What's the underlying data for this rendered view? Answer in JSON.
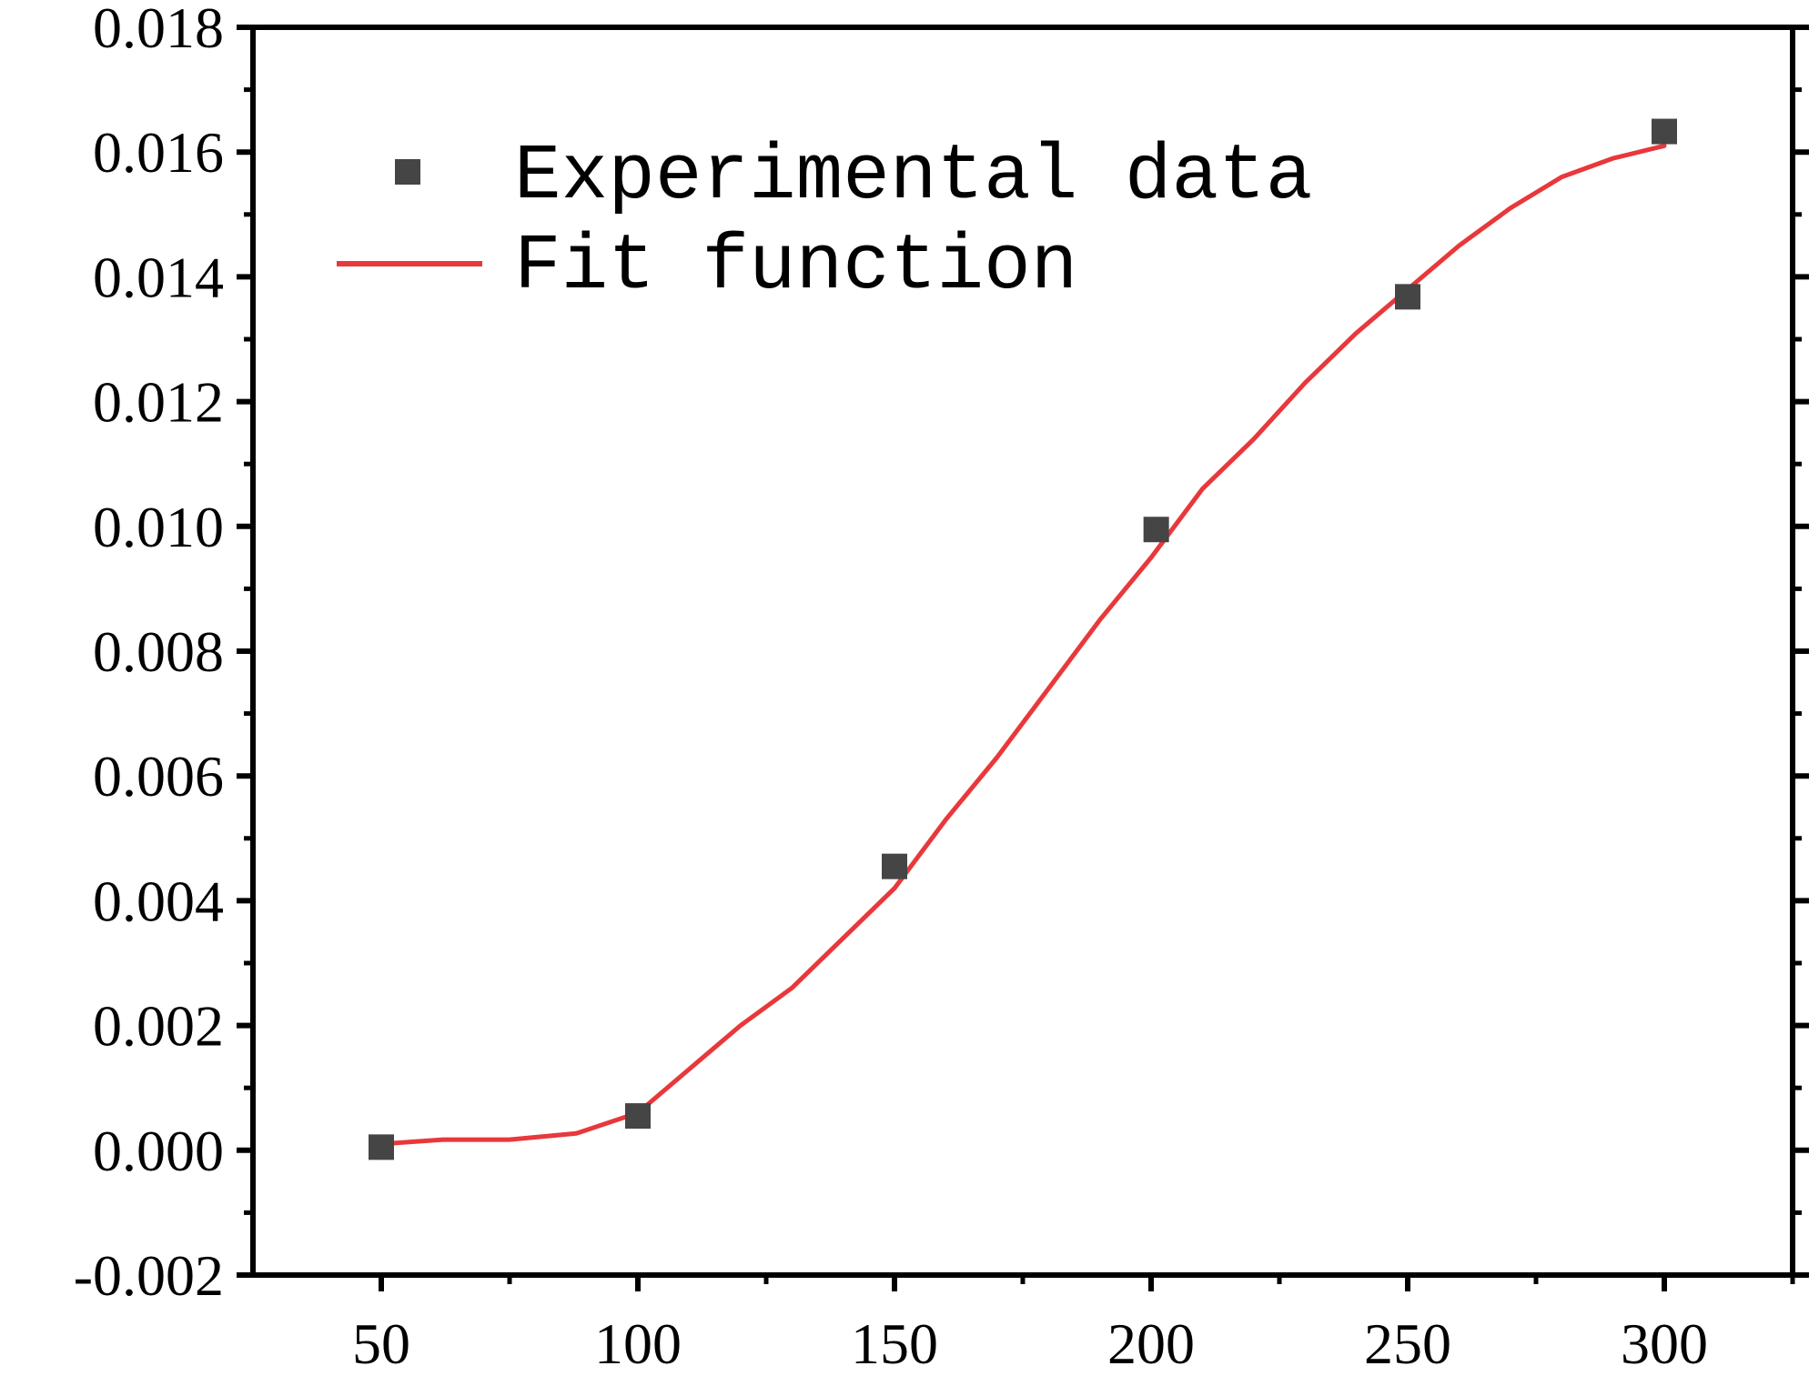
{
  "chart_data": {
    "type": "scatter",
    "title": "",
    "xlabel": "",
    "ylabel": "",
    "xlim": [
      25,
      325
    ],
    "ylim": [
      -0.002,
      0.018
    ],
    "x_ticks": [
      {
        "value": 50,
        "label": "50"
      },
      {
        "value": 100,
        "label": "100"
      },
      {
        "value": 150,
        "label": "150"
      },
      {
        "value": 200,
        "label": "200"
      },
      {
        "value": 250,
        "label": "250"
      },
      {
        "value": 300,
        "label": "300"
      }
    ],
    "y_ticks": [
      {
        "value": -0.002,
        "label": "-0.002"
      },
      {
        "value": 0.0,
        "label": "0.000"
      },
      {
        "value": 0.002,
        "label": "0.002"
      },
      {
        "value": 0.004,
        "label": "0.004"
      },
      {
        "value": 0.006,
        "label": "0.006"
      },
      {
        "value": 0.008,
        "label": "0.008"
      },
      {
        "value": 0.01,
        "label": "0.010"
      },
      {
        "value": 0.012,
        "label": "0.012"
      },
      {
        "value": 0.014,
        "label": "0.014"
      },
      {
        "value": 0.016,
        "label": "0.016"
      },
      {
        "value": 0.018,
        "label": "0.018"
      }
    ],
    "grid": false,
    "legend_position": "top-left",
    "series": [
      {
        "name": "Experimental data",
        "kind": "scatter",
        "marker": "square",
        "color": "#454545",
        "points": [
          {
            "x": 50,
            "y": 5e-05
          },
          {
            "x": 100,
            "y": 0.00055
          },
          {
            "x": 150,
            "y": 0.00455
          },
          {
            "x": 201,
            "y": 0.00995
          },
          {
            "x": 250,
            "y": 0.01368
          },
          {
            "x": 300,
            "y": 0.01633
          }
        ]
      },
      {
        "name": "Fit function",
        "kind": "line",
        "color": "#e8383b",
        "points": [
          {
            "x": 50,
            "y": 0.0001
          },
          {
            "x": 62,
            "y": 0.00017
          },
          {
            "x": 75,
            "y": 0.00017
          },
          {
            "x": 88,
            "y": 0.00027
          },
          {
            "x": 100,
            "y": 0.0006
          },
          {
            "x": 110,
            "y": 0.0013
          },
          {
            "x": 120,
            "y": 0.002
          },
          {
            "x": 130,
            "y": 0.0026
          },
          {
            "x": 140,
            "y": 0.0034
          },
          {
            "x": 150,
            "y": 0.0042
          },
          {
            "x": 160,
            "y": 0.0053
          },
          {
            "x": 170,
            "y": 0.0063
          },
          {
            "x": 180,
            "y": 0.0074
          },
          {
            "x": 190,
            "y": 0.0085
          },
          {
            "x": 200,
            "y": 0.0095
          },
          {
            "x": 210,
            "y": 0.0106
          },
          {
            "x": 220,
            "y": 0.0114
          },
          {
            "x": 230,
            "y": 0.0123
          },
          {
            "x": 240,
            "y": 0.0131
          },
          {
            "x": 250,
            "y": 0.0138
          },
          {
            "x": 260,
            "y": 0.0145
          },
          {
            "x": 270,
            "y": 0.0151
          },
          {
            "x": 280,
            "y": 0.0156
          },
          {
            "x": 290,
            "y": 0.0159
          },
          {
            "x": 300,
            "y": 0.0161
          }
        ]
      }
    ]
  }
}
